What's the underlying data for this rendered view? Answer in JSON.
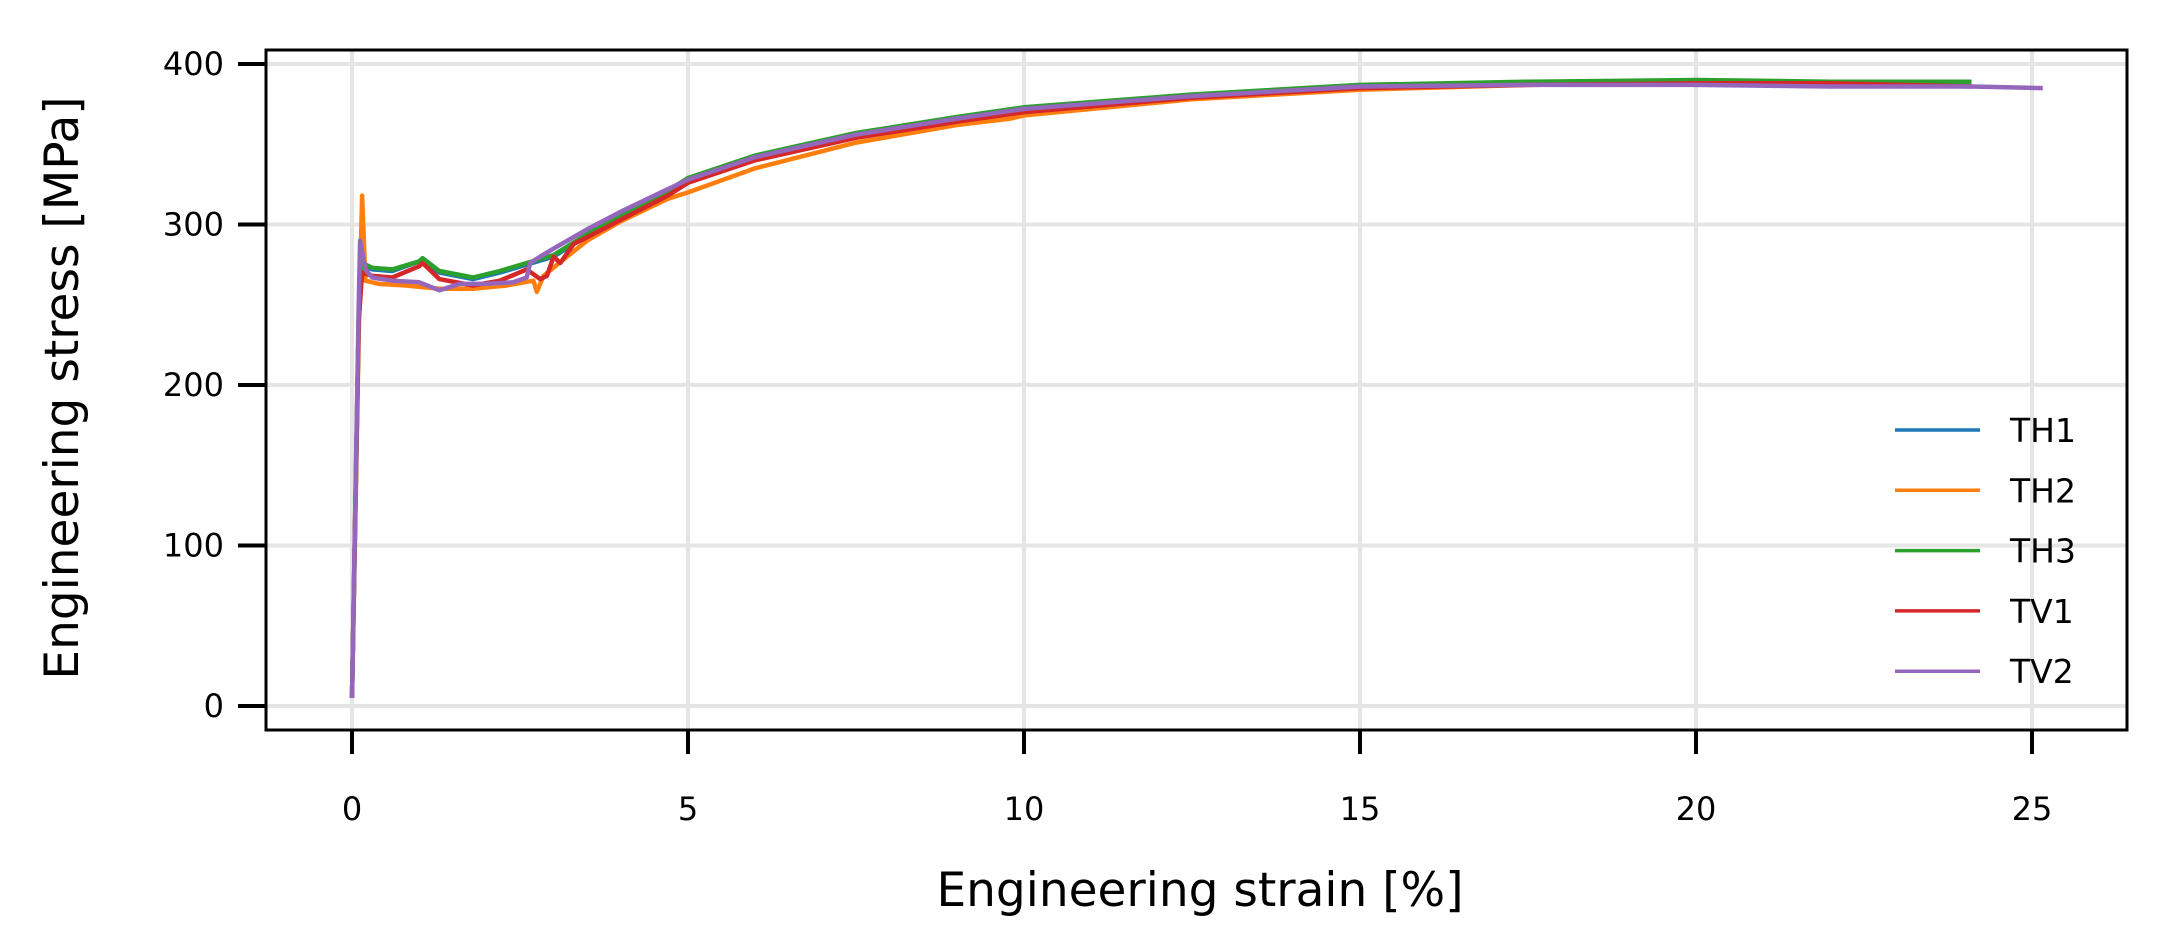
{
  "chart_data": {
    "type": "line",
    "title": "",
    "xlabel": "Engineering strain [%]",
    "ylabel": "Engineering stress [MPa]",
    "xlim": [
      -1.3,
      26.3
    ],
    "ylim": [
      -14,
      410
    ],
    "xticks": [
      0,
      5,
      10,
      15,
      20,
      25
    ],
    "yticks": [
      0,
      100,
      200,
      300,
      400
    ],
    "grid": true,
    "legend_position": "lower right",
    "series": [
      {
        "name": "TH1",
        "color": "#1f77b4",
        "x": [
          0,
          0.1,
          0.15,
          0.3,
          0.6,
          1.0,
          1.05,
          1.3,
          1.8,
          2.2,
          2.6,
          3.0,
          3.5,
          4.0,
          4.7,
          5.0,
          6.0,
          7.5,
          9.0,
          10.0,
          12.5,
          15.0,
          17.5,
          20.0,
          22.0,
          24.1
        ],
        "y": [
          5,
          240,
          275,
          272,
          271,
          277,
          278,
          270,
          266,
          270,
          275,
          280,
          293,
          305,
          320,
          328,
          342,
          356,
          366,
          372,
          380,
          386,
          388,
          389,
          389,
          388
        ]
      },
      {
        "name": "TH2",
        "color": "#ff7f0e",
        "x": [
          0,
          0.1,
          0.15,
          0.2,
          0.4,
          0.8,
          1.3,
          1.8,
          2.3,
          2.7,
          2.75,
          2.85,
          3.2,
          3.5,
          4.0,
          4.7,
          5.0,
          6.0,
          7.5,
          9.0,
          9.8,
          10.0,
          12.5,
          15.0,
          17.5,
          20.0,
          22.0,
          24.1
        ],
        "y": [
          5,
          230,
          318,
          265,
          263,
          262,
          260,
          260,
          262,
          265,
          258,
          268,
          280,
          290,
          302,
          316,
          320,
          335,
          351,
          362,
          366,
          368,
          378,
          384,
          387,
          388,
          388,
          387
        ]
      },
      {
        "name": "TH3",
        "color": "#2ca02c",
        "x": [
          0,
          0.1,
          0.15,
          0.3,
          0.6,
          1.0,
          1.05,
          1.3,
          1.8,
          2.2,
          2.6,
          3.0,
          3.5,
          4.0,
          4.7,
          5.0,
          6.0,
          7.5,
          9.0,
          10.0,
          12.5,
          15.0,
          17.5,
          20.0,
          22.0,
          24.1
        ],
        "y": [
          5,
          240,
          276,
          273,
          272,
          277,
          279,
          271,
          267,
          271,
          276,
          281,
          294,
          306,
          321,
          329,
          343,
          357,
          367,
          373,
          381,
          387,
          389,
          390,
          389,
          389
        ]
      },
      {
        "name": "TV1",
        "color": "#d62728",
        "x": [
          0,
          0.1,
          0.15,
          0.3,
          0.6,
          1.0,
          1.05,
          1.3,
          1.8,
          2.2,
          2.6,
          2.8,
          2.9,
          3.0,
          3.1,
          3.3,
          3.5,
          4.0,
          4.7,
          5.0,
          6.0,
          7.5,
          9.0,
          10.0,
          12.5,
          15.0,
          17.5,
          20.0,
          22.0,
          24.1
        ],
        "y": [
          5,
          240,
          270,
          268,
          267,
          274,
          276,
          266,
          262,
          265,
          272,
          266,
          268,
          280,
          276,
          288,
          292,
          303,
          318,
          326,
          340,
          354,
          364,
          370,
          379,
          385,
          387,
          388,
          388,
          386
        ]
      },
      {
        "name": "TV2",
        "color": "#9467bd",
        "x": [
          0,
          0.1,
          0.12,
          0.2,
          0.3,
          0.6,
          1.0,
          1.3,
          1.6,
          2.0,
          2.4,
          2.6,
          2.65,
          2.8,
          3.0,
          3.5,
          4.0,
          4.7,
          5.0,
          6.0,
          7.5,
          9.0,
          10.0,
          12.5,
          15.0,
          17.5,
          20.0,
          22.0,
          24.1,
          25.16
        ],
        "y": [
          5,
          250,
          290,
          272,
          267,
          265,
          264,
          259,
          263,
          263,
          264,
          267,
          276,
          280,
          285,
          297,
          308,
          322,
          328,
          342,
          356,
          366,
          372,
          380,
          386,
          387,
          387,
          386,
          386,
          385
        ]
      }
    ]
  },
  "axes": {
    "xlabel": "Engineering strain [%]",
    "ylabel": "Engineering stress [MPa]",
    "xtick_labels": [
      "0",
      "5",
      "10",
      "15",
      "20",
      "25"
    ],
    "ytick_labels": [
      "0",
      "100",
      "200",
      "300",
      "400"
    ]
  },
  "legend": {
    "items": [
      {
        "label": "TH1",
        "color": "#1f77b4"
      },
      {
        "label": "TH2",
        "color": "#ff7f0e"
      },
      {
        "label": "TH3",
        "color": "#2ca02c"
      },
      {
        "label": "TV1",
        "color": "#d62728"
      },
      {
        "label": "TV2",
        "color": "#9467bd"
      }
    ]
  }
}
